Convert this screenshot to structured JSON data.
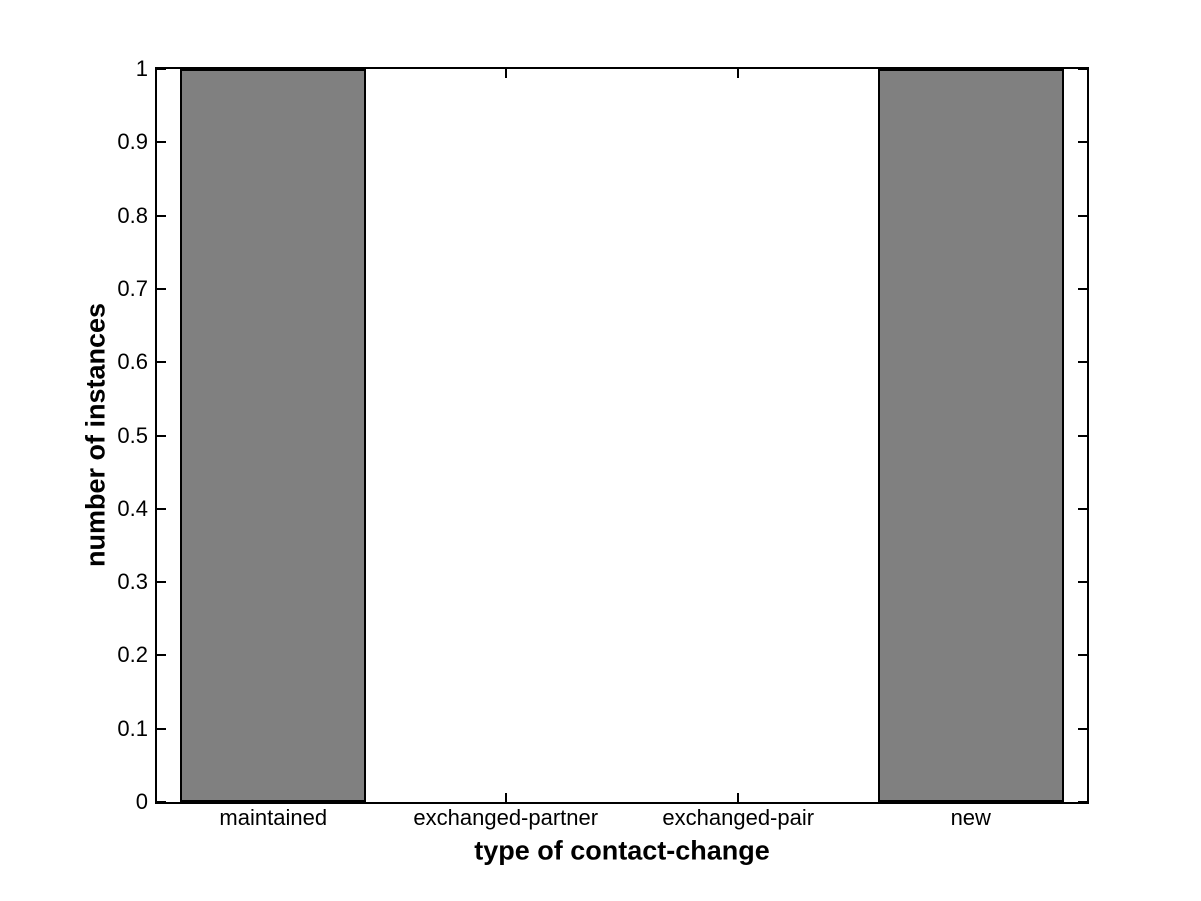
{
  "chart_data": {
    "type": "bar",
    "xlabel": "type of contact-change",
    "ylabel": "number of instances",
    "categories": [
      "maintained",
      "exchanged-partner",
      "exchanged-pair",
      "new"
    ],
    "values": [
      1,
      0,
      0,
      1
    ],
    "ylim": [
      0,
      1
    ],
    "yticks": [
      0,
      0.1,
      0.2,
      0.3,
      0.4,
      0.5,
      0.6,
      0.7,
      0.8,
      0.9,
      1
    ],
    "ytick_labels": [
      "0",
      "0.1",
      "0.2",
      "0.3",
      "0.4",
      "0.5",
      "0.6",
      "0.7",
      "0.8",
      "0.9",
      "1"
    ],
    "xlim": [
      0.5,
      4.5
    ],
    "bar_width_fraction": 0.8,
    "bar_color": "#808080",
    "bar_edge_color": "#000000",
    "axis_color": "#000000",
    "background_color": "#ffffff",
    "grid": false,
    "tick_direction": "in",
    "box": true,
    "legend": false
  }
}
